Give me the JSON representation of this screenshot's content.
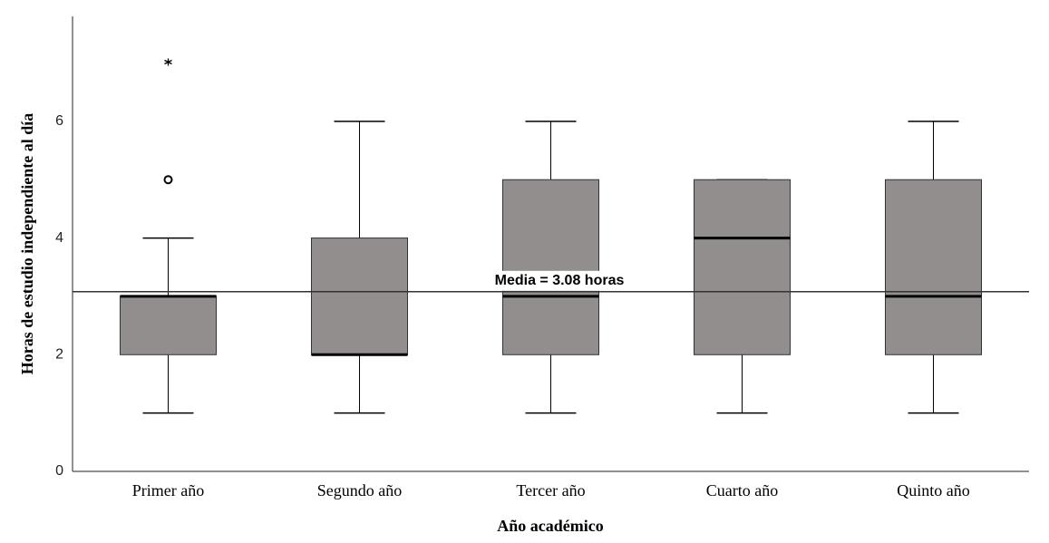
{
  "chart_data": {
    "type": "box",
    "x_label": "Año académico",
    "y_label": "Horas de estudio independiente al día",
    "categories": [
      "Primer año",
      "Segundo año",
      "Tercer año",
      "Cuarto año",
      "Quinto año"
    ],
    "boxes": [
      {
        "whisker_low": 1,
        "q1": 2,
        "median": 3,
        "q3": 3,
        "whisker_high": 4,
        "outliers": [
          5
        ],
        "extremes": [
          7
        ]
      },
      {
        "whisker_low": 1,
        "q1": 2,
        "median": 2,
        "q3": 4,
        "whisker_high": 6
      },
      {
        "whisker_low": 1,
        "q1": 2,
        "median": 3,
        "q3": 5,
        "whisker_high": 6
      },
      {
        "whisker_low": 1,
        "q1": 2,
        "median": 4,
        "q3": 5,
        "whisker_high": 5
      },
      {
        "whisker_low": 1,
        "q1": 2,
        "median": 3,
        "q3": 5,
        "whisker_high": 6
      }
    ],
    "color": "#918e8d",
    "mean_line": {
      "value": 3.08,
      "label": "Media = 3.08 horas"
    },
    "ylim": [
      0,
      7.8
    ],
    "yticks": [
      0,
      2,
      4,
      6
    ],
    "grid": false
  }
}
